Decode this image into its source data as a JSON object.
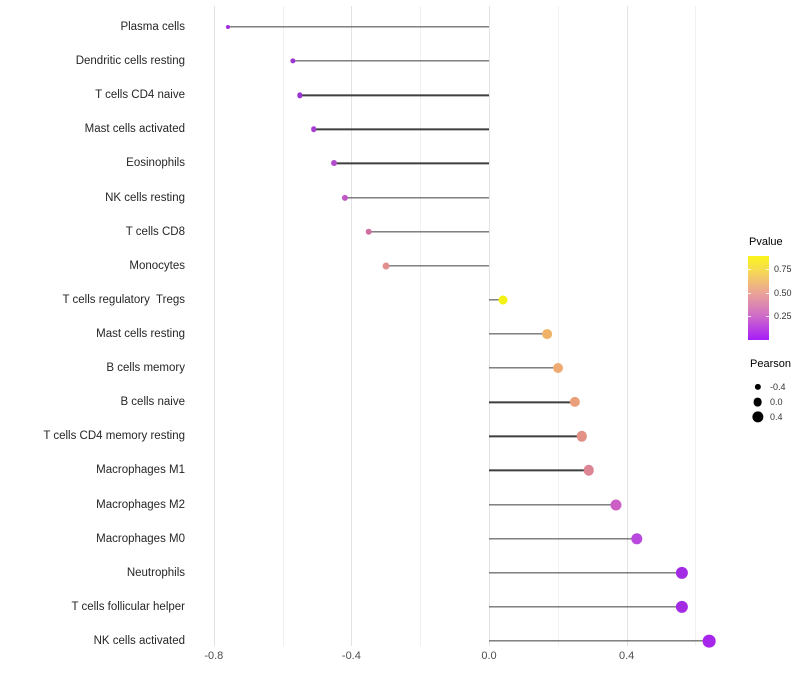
{
  "chart_data": {
    "type": "lollipop",
    "orientation": "horizontal",
    "title": "",
    "xlabel": "",
    "ylabel": "",
    "categories": [
      "Plasma cells",
      "Dendritic cells resting",
      "T cells CD4 naive",
      "Mast cells activated",
      "Eosinophils",
      "NK cells resting",
      "T cells CD8",
      "Monocytes",
      "T cells regulatory  Tregs",
      "Mast cells resting",
      "B cells memory",
      "B cells naive",
      "T cells CD4 memory resting",
      "Macrophages M1",
      "Macrophages M2",
      "Macrophages M0",
      "Neutrophils",
      "T cells follicular helper",
      "NK cells activated"
    ],
    "series": [
      {
        "name": "Pearson",
        "values": [
          -0.76,
          -0.57,
          -0.55,
          -0.51,
          -0.45,
          -0.42,
          -0.35,
          -0.3,
          0.04,
          0.17,
          0.2,
          0.25,
          0.27,
          0.29,
          0.37,
          0.43,
          0.56,
          0.56,
          0.64
        ],
        "point_colors": [
          "#A02CDE",
          "#9C36D2",
          "#9C36D2",
          "#A83DD4",
          "#B14CCC",
          "#C058C6",
          "#CE6FA2",
          "#E2908F",
          "#F4F115",
          "#F0B266",
          "#EEAA70",
          "#EA9F7B",
          "#E39186",
          "#DD8495",
          "#CC5FC4",
          "#B848DE",
          "#A42BE4",
          "#A42BE4",
          "#A825EC"
        ]
      }
    ],
    "x_axis": {
      "tick_labels": [
        "-0.8",
        "-0.4",
        "0.0",
        "0.4"
      ],
      "tick_values": [
        -0.8,
        -0.4,
        0.0,
        0.4
      ],
      "xlim": [
        -0.87,
        0.7
      ],
      "grid_step": 0.2,
      "grid_on": true
    },
    "legend": {
      "pvalue": {
        "title": "Pvalue",
        "tick_labels": [
          "0.75",
          "0.50",
          "0.25"
        ],
        "tick_values": [
          0.75,
          0.5,
          0.25
        ],
        "range": [
          0.0,
          0.89
        ],
        "gradient_bottom_to_top": [
          {
            "color": "#A61CF8",
            "pos": 0.0
          },
          {
            "color": "#CE6CC8",
            "pos": 0.286
          },
          {
            "color": "#ECA496",
            "pos": 0.564
          },
          {
            "color": "#F6DC4F",
            "pos": 0.84
          },
          {
            "color": "#FAF51B",
            "pos": 1.0
          }
        ]
      },
      "pearson": {
        "title": "Pearson",
        "tick_labels": [
          "-0.4",
          "0.0",
          "0.4"
        ],
        "tick_values": [
          -0.4,
          0.0,
          0.4
        ],
        "dot_color": "#000000"
      },
      "position": "right"
    },
    "colors": {
      "stem": "#3f3f3f",
      "grid_major": "#e3e3e3",
      "grid_minor": "#f1f1f1",
      "axis_text": "#4d4d4d",
      "category_text": "#262626",
      "background": "#ffffff"
    }
  }
}
